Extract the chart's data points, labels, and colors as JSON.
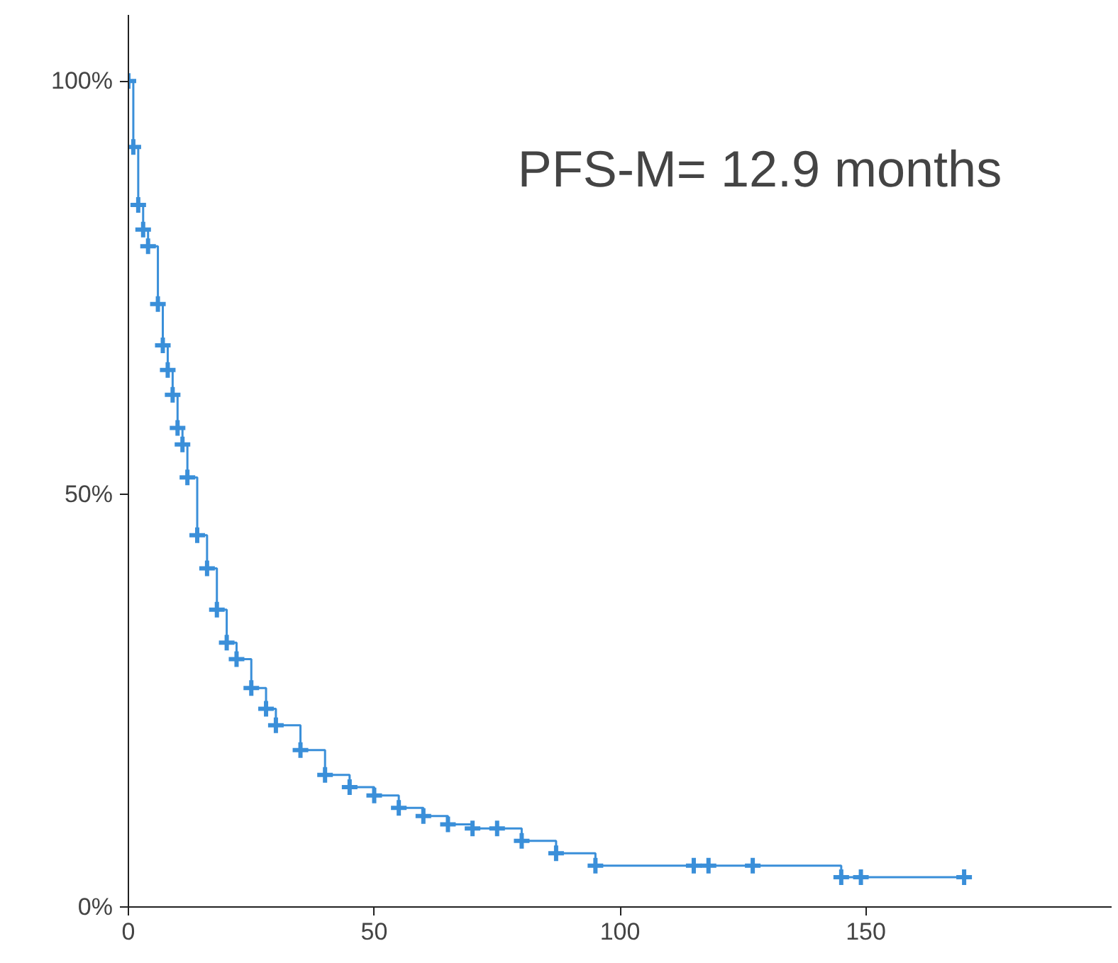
{
  "chart_data": {
    "type": "step",
    "annotations": [
      "PFS-M= 12.9 months"
    ],
    "x": [
      0,
      1,
      2,
      3,
      4,
      6,
      7,
      8,
      9,
      10,
      11,
      12,
      14,
      16,
      18,
      20,
      22,
      25,
      28,
      30,
      35,
      40,
      45,
      50,
      55,
      60,
      65,
      70,
      75,
      80,
      87,
      95,
      115,
      118,
      127,
      145,
      149,
      170
    ],
    "series": [
      {
        "color": "#3a8fd9",
        "values": [
          100,
          92,
          85,
          82,
          80,
          73,
          68,
          65,
          62,
          58,
          56,
          52,
          45,
          41,
          36,
          32,
          30,
          26.5,
          24,
          22,
          19,
          16,
          14.5,
          13.5,
          12,
          11,
          10,
          9.5,
          9.5,
          8,
          6.5,
          5,
          5,
          5,
          5,
          3.6,
          3.6,
          3.6
        ]
      }
    ],
    "xlim": [
      0,
      200
    ],
    "ylim": [
      0,
      108
    ],
    "xticks": [
      0,
      50,
      100,
      150
    ],
    "yticks": [
      {
        "value": 0,
        "label": "0%"
      },
      {
        "value": 50,
        "label": "50%"
      },
      {
        "value": 100,
        "label": "100%"
      }
    ],
    "grid": false,
    "marker": "cross",
    "line_style": "solid"
  }
}
